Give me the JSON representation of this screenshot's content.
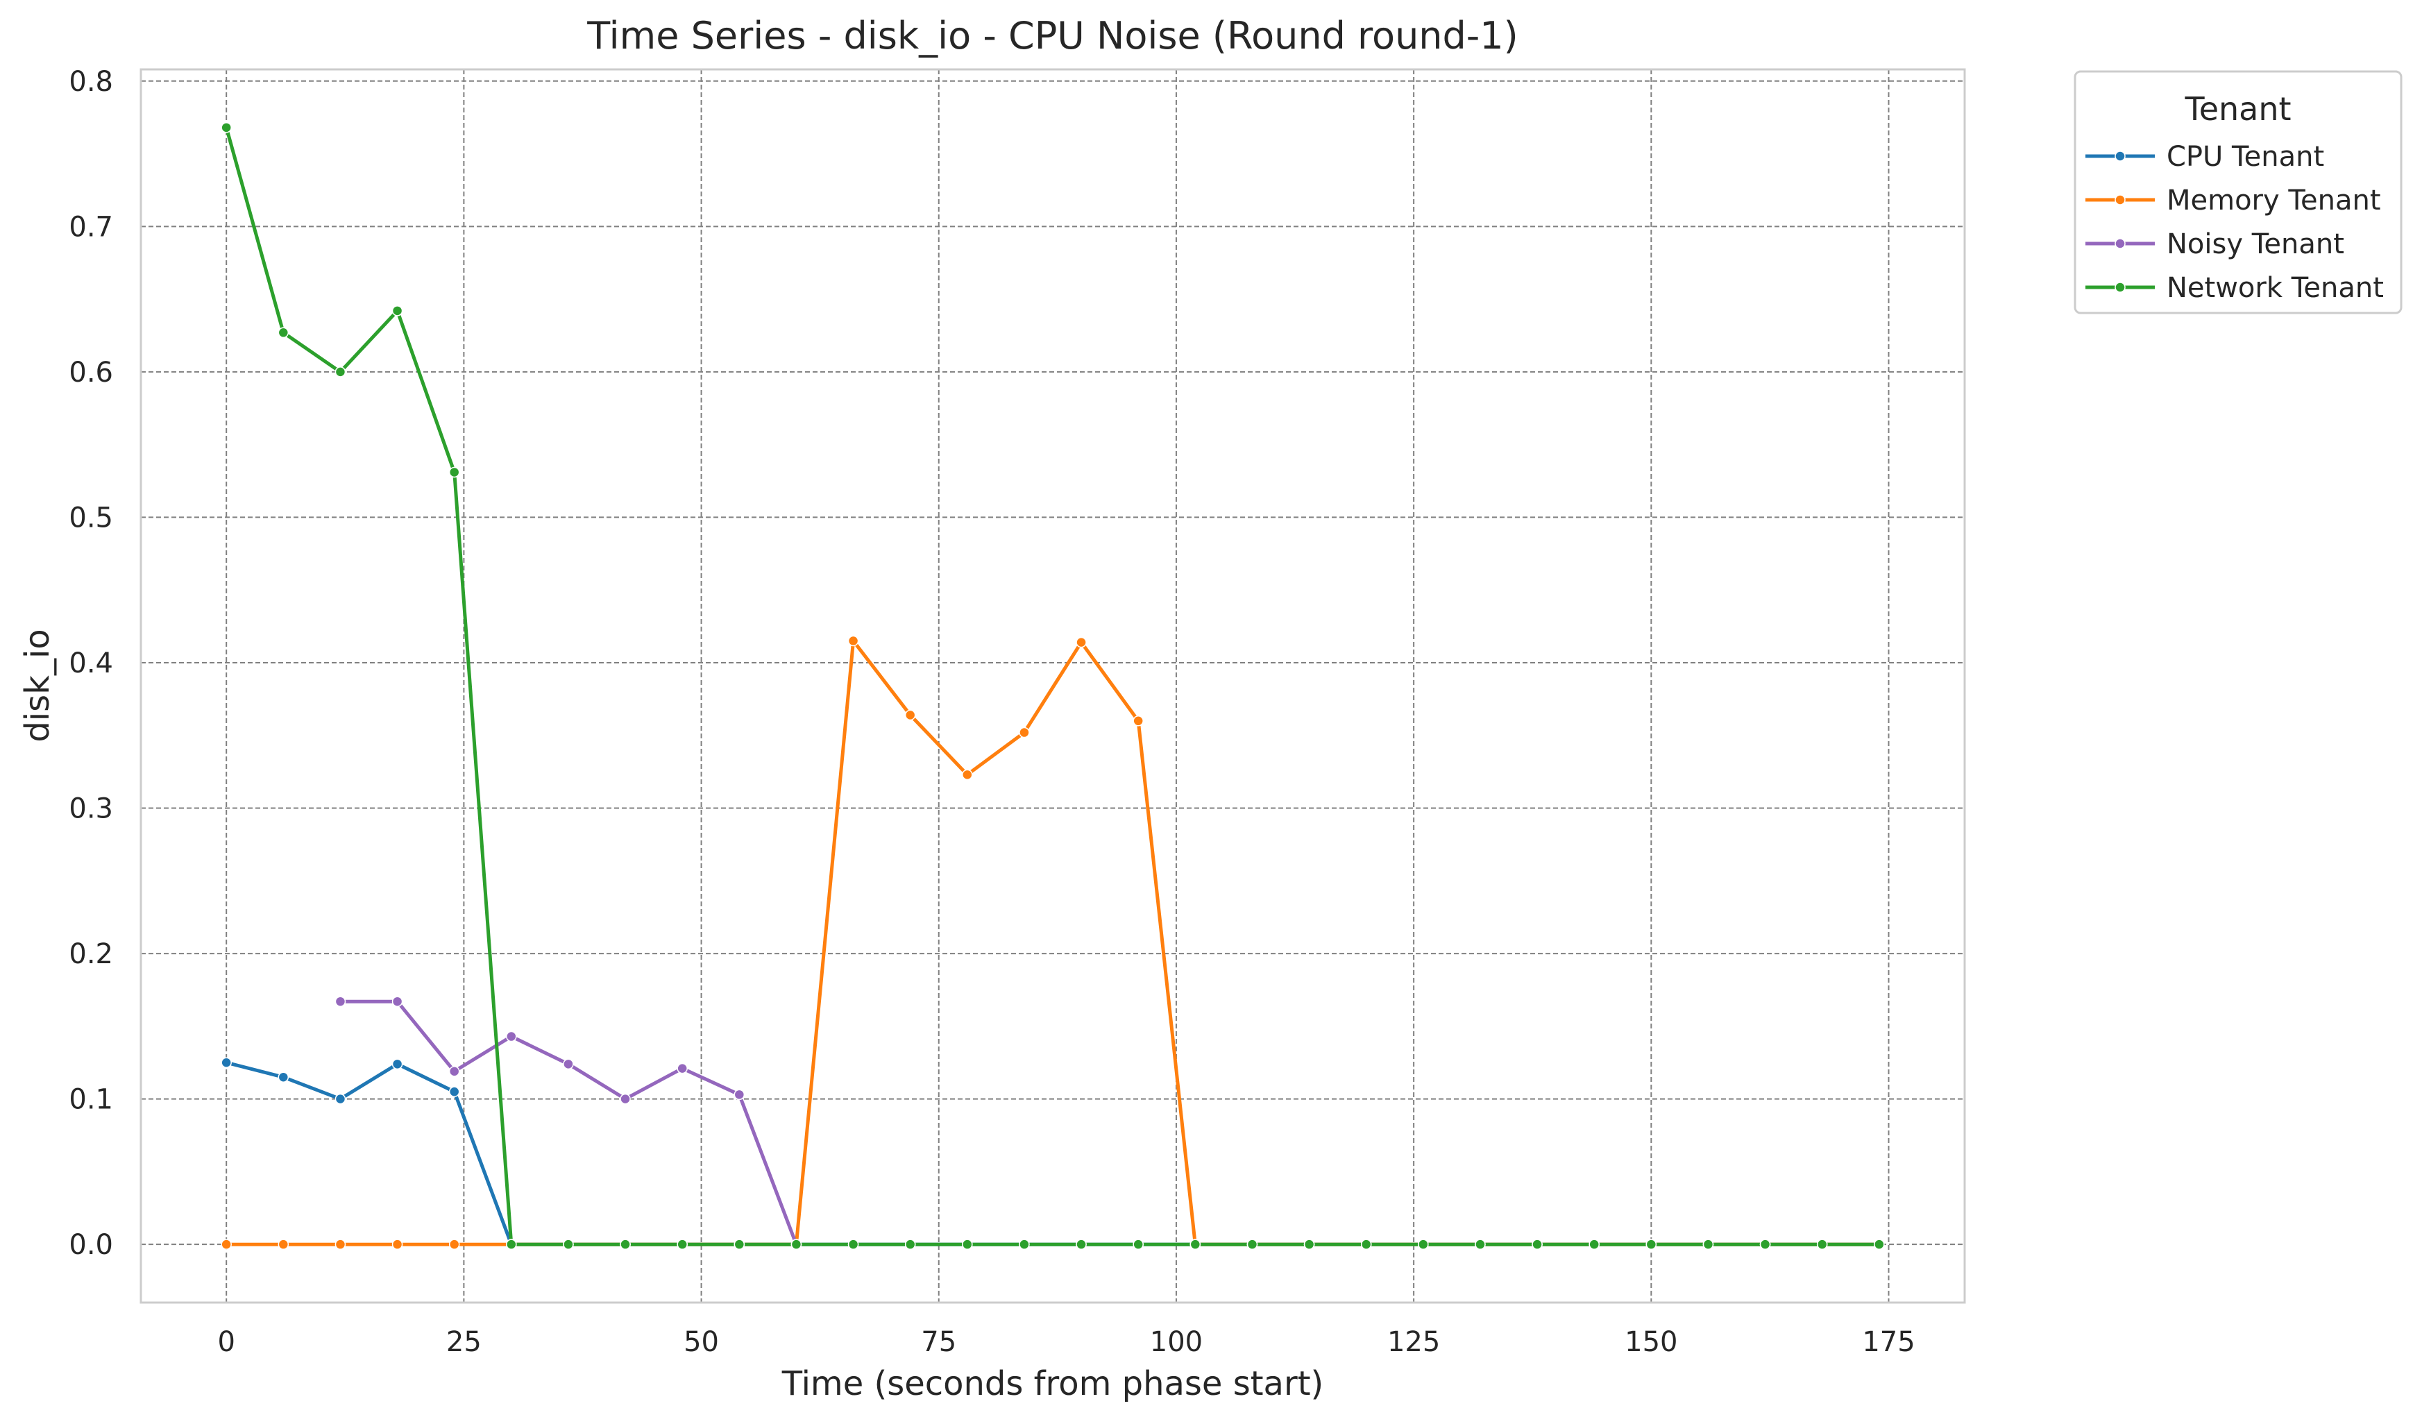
{
  "chart_data": {
    "type": "line",
    "title": "Time Series - disk_io - CPU Noise (Round round-1)",
    "xlabel": "Time (seconds from phase start)",
    "ylabel": "disk_io",
    "xlim": [
      -9,
      183
    ],
    "ylim": [
      -0.04,
      0.808
    ],
    "xticks": [
      0,
      25,
      50,
      75,
      100,
      125,
      150,
      175
    ],
    "yticks": [
      0.0,
      0.1,
      0.2,
      0.3,
      0.4,
      0.5,
      0.6,
      0.7,
      0.8
    ],
    "xtick_labels": [
      "0",
      "25",
      "50",
      "75",
      "100",
      "125",
      "150",
      "175"
    ],
    "ytick_labels": [
      "0.0",
      "0.1",
      "0.2",
      "0.3",
      "0.4",
      "0.5",
      "0.6",
      "0.7",
      "0.8"
    ],
    "grid": true,
    "legend": {
      "title": "Tenant",
      "placement": "outside-top-right"
    },
    "series": [
      {
        "name": "CPU Tenant",
        "color": "#1f77b4",
        "x": [
          0,
          6,
          12,
          18,
          24,
          30,
          36,
          42,
          48,
          54,
          60,
          66,
          72,
          78,
          84,
          90,
          96,
          102,
          108,
          114,
          120,
          126,
          132,
          138,
          144,
          150,
          156,
          162,
          168,
          174
        ],
        "y": [
          0.125,
          0.115,
          0.1,
          0.124,
          0.105,
          0,
          0,
          0,
          0,
          0,
          0,
          0,
          0,
          0,
          0,
          0,
          0,
          0,
          0,
          0,
          0,
          0,
          0,
          0,
          0,
          0,
          0,
          0,
          0,
          0
        ]
      },
      {
        "name": "Memory Tenant",
        "color": "#ff7f0e",
        "x": [
          0,
          6,
          12,
          18,
          24,
          30,
          36,
          42,
          48,
          54,
          60,
          66,
          72,
          78,
          84,
          90,
          96,
          102,
          108,
          114,
          120,
          126,
          132,
          138,
          144,
          150,
          156,
          162,
          168,
          174
        ],
        "y": [
          0,
          0,
          0,
          0,
          0,
          0,
          0,
          0,
          0,
          0,
          0,
          0.415,
          0.364,
          0.323,
          0.352,
          0.414,
          0.36,
          0,
          0,
          0,
          0,
          0,
          0,
          0,
          0,
          0,
          0,
          0,
          0,
          0
        ]
      },
      {
        "name": "Noisy Tenant",
        "color": "#9467bd",
        "x": [
          12,
          18,
          24,
          30,
          36,
          42,
          48,
          54,
          60
        ],
        "y": [
          0.167,
          0.167,
          0.119,
          0.143,
          0.124,
          0.1,
          0.121,
          0.103,
          0
        ]
      },
      {
        "name": "Network Tenant",
        "color": "#2ca02c",
        "x": [
          0,
          6,
          12,
          18,
          24,
          30,
          36,
          42,
          48,
          54,
          60,
          66,
          72,
          78,
          84,
          90,
          96,
          102,
          108,
          114,
          120,
          126,
          132,
          138,
          144,
          150,
          156,
          162,
          168,
          174
        ],
        "y": [
          0.768,
          0.627,
          0.6,
          0.642,
          0.531,
          0,
          0,
          0,
          0,
          0,
          0,
          0,
          0,
          0,
          0,
          0,
          0,
          0,
          0,
          0,
          0,
          0,
          0,
          0,
          0,
          0,
          0,
          0,
          0,
          0
        ]
      }
    ]
  }
}
